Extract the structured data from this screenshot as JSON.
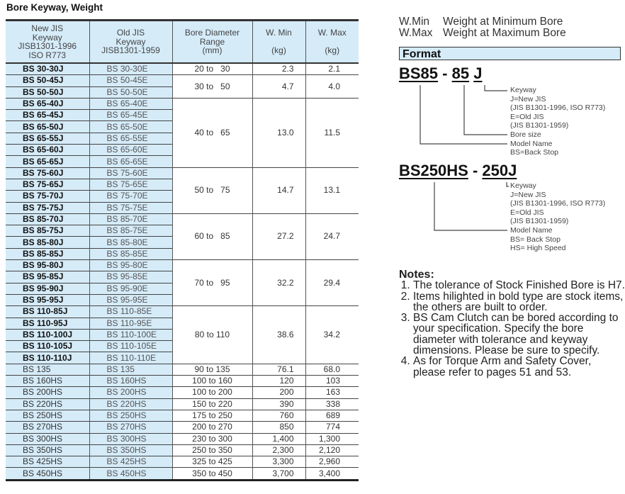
{
  "title": "Bore Keyway, Weight",
  "table": {
    "headers": [
      [
        "New JIS",
        "Keyway",
        "JISB1301-1996",
        "ISO R773"
      ],
      [
        "Old JIS",
        "Keyway",
        "JISB1301-1959"
      ],
      [
        "Bore Diameter",
        "Range",
        "(mm)"
      ],
      [
        "W. Min",
        "",
        "(kg)"
      ],
      [
        "W. Max",
        "",
        "(kg)"
      ]
    ],
    "groups": [
      {
        "new": [
          "BS 30-30J"
        ],
        "old": [
          "BS 30-30E"
        ],
        "range": "20 to   30",
        "wmin": "2.3",
        "wmax": "2.1",
        "bold": true
      },
      {
        "new": [
          "BS 50-45J",
          "BS 50-50J"
        ],
        "old": [
          "BS 50-45E",
          "BS 50-50E"
        ],
        "range": "30 to   50",
        "wmin": "4.7",
        "wmax": "4.0",
        "bold": true
      },
      {
        "new": [
          "BS 65-40J",
          "BS 65-45J",
          "BS 65-50J",
          "BS 65-55J",
          "BS 65-60J",
          "BS 65-65J"
        ],
        "old": [
          "BS 65-40E",
          "BS 65-45E",
          "BS 65-50E",
          "BS 65-55E",
          "BS 65-60E",
          "BS 65-65E"
        ],
        "range": "40 to   65",
        "wmin": "13.0",
        "wmax": "11.5",
        "bold": true
      },
      {
        "new": [
          "BS 75-60J",
          "BS 75-65J",
          "BS 75-70J",
          "BS 75-75J"
        ],
        "old": [
          "BS 75-60E",
          "BS 75-65E",
          "BS 75-70E",
          "BS 75-75E"
        ],
        "range": "50 to   75",
        "wmin": "14.7",
        "wmax": "13.1",
        "bold": true
      },
      {
        "new": [
          "BS 85-70J",
          "BS 85-75J",
          "BS 85-80J",
          "BS 85-85J"
        ],
        "old": [
          "BS 85-70E",
          "BS 85-75E",
          "BS 85-80E",
          "BS 85-85E"
        ],
        "range": "60 to   85",
        "wmin": "27.2",
        "wmax": "24.7",
        "bold": true
      },
      {
        "new": [
          "BS 95-80J",
          "BS 95-85J",
          "BS 95-90J",
          "BS 95-95J"
        ],
        "old": [
          "BS 95-80E",
          "BS 95-85E",
          "BS 95-90E",
          "BS 95-95E"
        ],
        "range": "70 to   95",
        "wmin": "32.2",
        "wmax": "29.4",
        "bold": true
      },
      {
        "new": [
          "BS 110-85J",
          "BS 110-95J",
          "BS 110-100J",
          "BS 110-105J",
          "BS 110-110J"
        ],
        "old": [
          "BS 110-85E",
          "BS 110-95E",
          "BS 110-100E",
          "BS 110-105E",
          "BS 110-110E"
        ],
        "range": "80 to 110",
        "wmin": "38.6",
        "wmax": "34.2",
        "bold": true
      },
      {
        "new": [
          "BS 135"
        ],
        "old": [
          "BS 135"
        ],
        "range": "90 to 135",
        "wmin": "76.1",
        "wmax": "68.0",
        "bold": false
      },
      {
        "new": [
          "BS 160HS"
        ],
        "old": [
          "BS 160HS"
        ],
        "range": "100 to 160",
        "wmin": "120",
        "wmax": "103",
        "bold": false
      },
      {
        "new": [
          "BS 200HS"
        ],
        "old": [
          "BS 200HS"
        ],
        "range": "100 to 200",
        "wmin": "200",
        "wmax": "163",
        "bold": false
      },
      {
        "new": [
          "BS 220HS"
        ],
        "old": [
          "BS 220HS"
        ],
        "range": "150 to 220",
        "wmin": "390",
        "wmax": "338",
        "bold": false
      },
      {
        "new": [
          "BS 250HS"
        ],
        "old": [
          "BS 250HS"
        ],
        "range": "175 to 250",
        "wmin": "760",
        "wmax": "689",
        "bold": false
      },
      {
        "new": [
          "BS 270HS"
        ],
        "old": [
          "BS 270HS"
        ],
        "range": "200 to 270",
        "wmin": "850",
        "wmax": "774",
        "bold": false
      },
      {
        "new": [
          "BS 300HS"
        ],
        "old": [
          "BS 300HS"
        ],
        "range": "230 to 300",
        "wmin": "1,400",
        "wmax": "1,300",
        "bold": false
      },
      {
        "new": [
          "BS 350HS"
        ],
        "old": [
          "BS 350HS"
        ],
        "range": "250 to 350",
        "wmin": "2,300",
        "wmax": "2,120",
        "bold": false
      },
      {
        "new": [
          "BS 425HS"
        ],
        "old": [
          "BS 425HS"
        ],
        "range": "325 to 425",
        "wmin": "3,300",
        "wmax": "2,960",
        "bold": false
      },
      {
        "new": [
          "BS 450HS"
        ],
        "old": [
          "BS 450HS"
        ],
        "range": "350 to 450",
        "wmin": "3,700",
        "wmax": "3,400",
        "bold": false
      }
    ]
  },
  "legend": [
    {
      "abbr": "W.Min",
      "text": "Weight at Minimum Bore"
    },
    {
      "abbr": "W.Max",
      "text": "Weight at Maximum Bore"
    }
  ],
  "format": {
    "heading": "Format",
    "example1": {
      "parts": [
        "BS85",
        "-",
        "85",
        "J"
      ],
      "lines": [
        "Keyway",
        "J=New JIS",
        "(JIS B1301-1996, ISO R773)",
        "E=Old JIS",
        "(JIS B1301-1959)",
        "Bore size",
        "Model Name",
        "BS=Back Stop"
      ]
    },
    "example2": {
      "parts": [
        "BS250HS",
        "-",
        "250J"
      ],
      "lines": [
        "Keyway",
        "J=New JIS",
        "(JIS B1301-1996, ISO R773)",
        "E=Old JIS",
        "(JIS B1301-1959)",
        "Model Name",
        "BS= Back Stop",
        "HS= High Speed"
      ]
    }
  },
  "notes": {
    "heading": "Notes:",
    "items": [
      "The tolerance of Stock Finished Bore is H7.",
      "Items hilighted in bold type are stock items, the others are built to order.",
      "BS Cam Clutch can be bored according to your specification. Specify the bore diameter with tolerance and keyway dimensions. Please be sure to specify.",
      "As for Torque Arm and Safety Cover, please refer to pages 51 and 53."
    ]
  },
  "colors": {
    "header_fill": "#d5ebf8",
    "rule": "#333333"
  }
}
